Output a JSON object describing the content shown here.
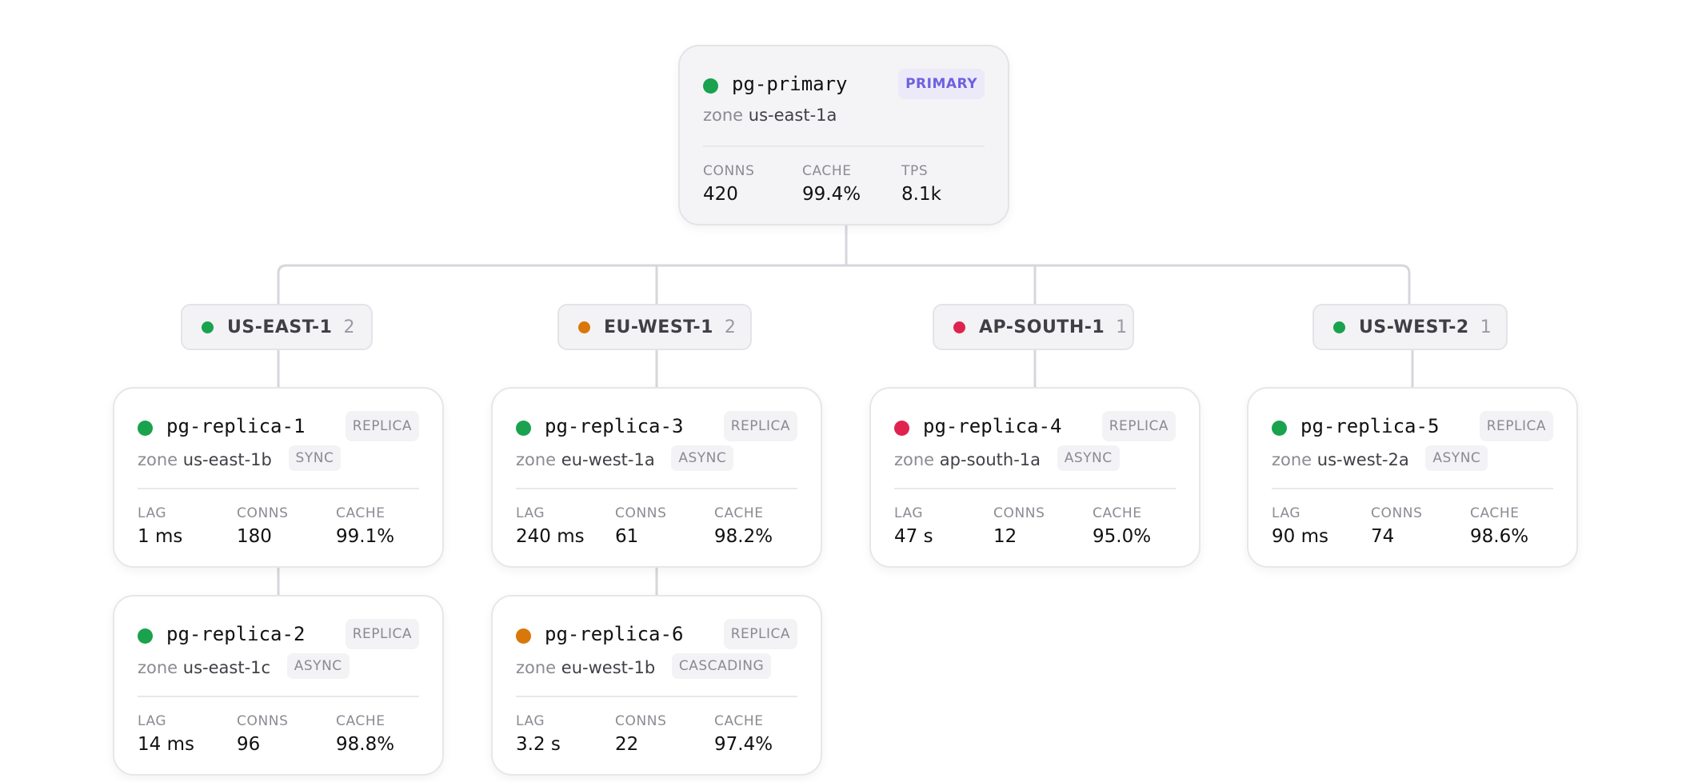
{
  "colors": {
    "healthy": "#1aa24f",
    "warning": "#d9770b",
    "critical": "#e0234e",
    "connector": "#d5d7dc",
    "primary_accent": "#6d61e0"
  },
  "primary": {
    "name": "pg-primary",
    "status": "healthy",
    "role": "PRIMARY",
    "zone_label": "zone",
    "zone": "us-east-1a",
    "stats": [
      {
        "label": "CONNS",
        "value": "420"
      },
      {
        "label": "CACHE",
        "value": "99.4%"
      },
      {
        "label": "TPS",
        "value": "8.1k"
      }
    ]
  },
  "regions": [
    {
      "label": "US-EAST-1",
      "count": "2",
      "status": "healthy",
      "replicas": [
        {
          "name": "pg-replica-1",
          "status": "healthy",
          "role": "REPLICA",
          "zone_label": "zone",
          "zone": "us-east-1b",
          "mode": "SYNC",
          "stats": [
            {
              "label": "LAG",
              "value": "1 ms"
            },
            {
              "label": "CONNS",
              "value": "180"
            },
            {
              "label": "CACHE",
              "value": "99.1%"
            }
          ]
        },
        {
          "name": "pg-replica-2",
          "status": "healthy",
          "role": "REPLICA",
          "zone_label": "zone",
          "zone": "us-east-1c",
          "mode": "ASYNC",
          "stats": [
            {
              "label": "LAG",
              "value": "14 ms"
            },
            {
              "label": "CONNS",
              "value": "96"
            },
            {
              "label": "CACHE",
              "value": "98.8%"
            }
          ]
        }
      ]
    },
    {
      "label": "EU-WEST-1",
      "count": "2",
      "status": "warning",
      "replicas": [
        {
          "name": "pg-replica-3",
          "status": "healthy",
          "role": "REPLICA",
          "zone_label": "zone",
          "zone": "eu-west-1a",
          "mode": "ASYNC",
          "stats": [
            {
              "label": "LAG",
              "value": "240 ms"
            },
            {
              "label": "CONNS",
              "value": "61"
            },
            {
              "label": "CACHE",
              "value": "98.2%"
            }
          ]
        },
        {
          "name": "pg-replica-6",
          "status": "warning",
          "role": "REPLICA",
          "zone_label": "zone",
          "zone": "eu-west-1b",
          "mode": "CASCADING",
          "stats": [
            {
              "label": "LAG",
              "value": "3.2 s"
            },
            {
              "label": "CONNS",
              "value": "22"
            },
            {
              "label": "CACHE",
              "value": "97.4%"
            }
          ]
        }
      ]
    },
    {
      "label": "AP-SOUTH-1",
      "count": "1",
      "status": "critical",
      "replicas": [
        {
          "name": "pg-replica-4",
          "status": "critical",
          "role": "REPLICA",
          "zone_label": "zone",
          "zone": "ap-south-1a",
          "mode": "ASYNC",
          "stats": [
            {
              "label": "LAG",
              "value": "47 s"
            },
            {
              "label": "CONNS",
              "value": "12"
            },
            {
              "label": "CACHE",
              "value": "95.0%"
            }
          ]
        }
      ]
    },
    {
      "label": "US-WEST-2",
      "count": "1",
      "status": "healthy",
      "replicas": [
        {
          "name": "pg-replica-5",
          "status": "healthy",
          "role": "REPLICA",
          "zone_label": "zone",
          "zone": "us-west-2a",
          "mode": "ASYNC",
          "stats": [
            {
              "label": "LAG",
              "value": "90 ms"
            },
            {
              "label": "CONNS",
              "value": "74"
            },
            {
              "label": "CACHE",
              "value": "98.6%"
            }
          ]
        }
      ]
    }
  ]
}
